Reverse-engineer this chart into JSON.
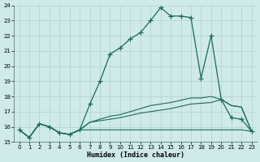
{
  "xlabel": "Humidex (Indice chaleur)",
  "background_color": "#d0eaea",
  "grid_color": "#b0d0d0",
  "line_color": "#1a6b5a",
  "xlim": [
    0,
    23
  ],
  "ylim": [
    15,
    24
  ],
  "xticks": [
    0,
    1,
    2,
    3,
    4,
    5,
    6,
    7,
    8,
    9,
    10,
    11,
    12,
    13,
    14,
    15,
    16,
    17,
    18,
    19,
    20,
    21,
    22,
    23
  ],
  "yticks": [
    15,
    16,
    17,
    18,
    19,
    20,
    21,
    22,
    23,
    24
  ],
  "hours": [
    0,
    1,
    2,
    3,
    4,
    5,
    6,
    7,
    8,
    9,
    10,
    11,
    12,
    13,
    14,
    15,
    16,
    17,
    18,
    19,
    20,
    21,
    22,
    23
  ],
  "line_main": [
    15.8,
    15.3,
    16.2,
    16.0,
    15.6,
    15.5,
    15.8,
    17.5,
    19.0,
    20.8,
    21.2,
    21.8,
    22.2,
    23.0,
    23.85,
    23.3,
    23.3,
    23.2,
    19.2,
    22.0,
    17.8,
    16.6,
    16.5,
    15.7
  ],
  "line_flat1": [
    15.8,
    15.3,
    16.2,
    16.0,
    15.6,
    15.5,
    15.8,
    16.3,
    16.5,
    16.7,
    16.8,
    17.0,
    17.2,
    17.4,
    17.5,
    17.6,
    17.75,
    17.9,
    17.9,
    18.0,
    17.8,
    17.4,
    17.3,
    15.7
  ],
  "line_flat2": [
    15.8,
    15.3,
    16.2,
    16.0,
    15.6,
    15.5,
    15.8,
    16.3,
    16.4,
    16.5,
    16.6,
    16.75,
    16.9,
    17.0,
    17.1,
    17.2,
    17.35,
    17.5,
    17.55,
    17.6,
    17.8,
    17.4,
    17.3,
    15.7
  ],
  "line_flat3": [
    15.8,
    15.3,
    16.2,
    16.0,
    15.6,
    15.5,
    15.8,
    15.8,
    15.8,
    15.8,
    15.8,
    15.8,
    15.8,
    15.8,
    15.8,
    15.8,
    15.8,
    15.8,
    15.8,
    15.8,
    15.8,
    15.8,
    15.8,
    15.7
  ]
}
